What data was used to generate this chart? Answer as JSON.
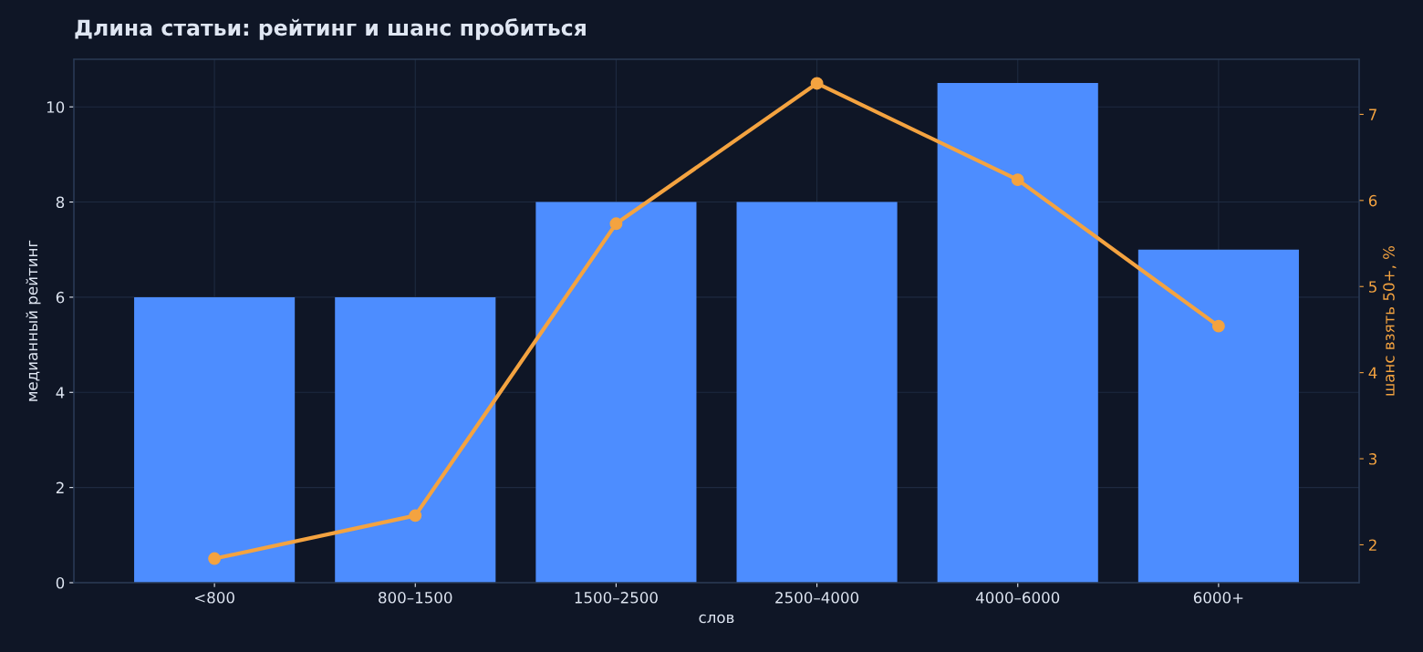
{
  "chart_data": {
    "type": "bar",
    "title": "Длина статьи: рейтинг и шанс пробиться",
    "xlabel": "слов",
    "ylabel": "медианный рейтинг",
    "y2label": "шанс взять 50+, %",
    "categories": [
      "<800",
      "800–1500",
      "1500–2500",
      "2500–4000",
      "4000–6000",
      "6000+"
    ],
    "series": [
      {
        "color": "#4d8dff",
        "values": [
          6,
          6,
          8,
          8,
          10.5,
          7
        ]
      },
      {
        "type": "line",
        "axis": "y2",
        "color": "#f4a340",
        "marker": "circle",
        "values": [
          1.84,
          2.34,
          5.73,
          7.36,
          6.24,
          4.54
        ]
      }
    ],
    "ylim": [
      0,
      11
    ],
    "yticks": [
      0,
      2,
      4,
      6,
      8,
      10
    ],
    "y2lim": [
      1.56,
      7.64
    ],
    "y2ticks": [
      2,
      3,
      4,
      5,
      6,
      7
    ],
    "grid": true
  }
}
